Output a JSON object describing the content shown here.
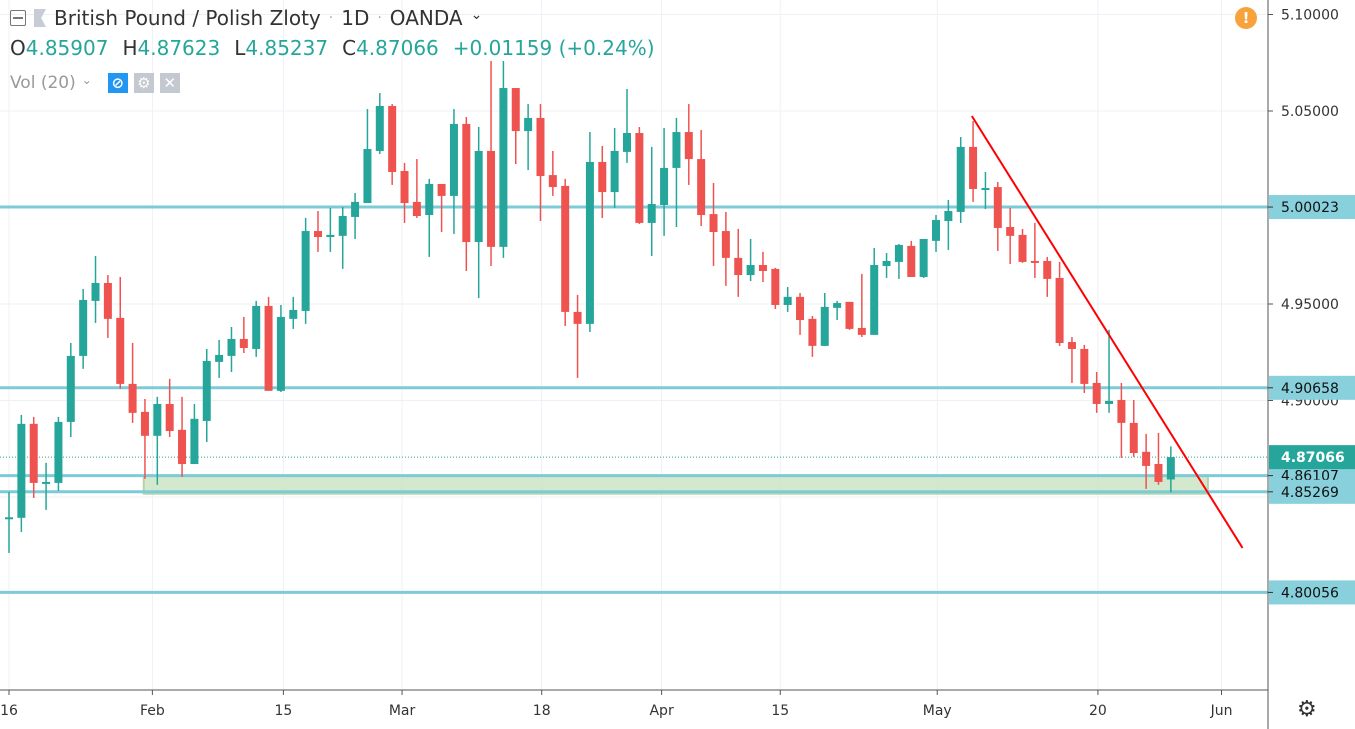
{
  "header": {
    "symbol": "British Pound / Polish Zloty",
    "separator": "·",
    "interval": "1D",
    "exchange": "OANDA",
    "chevron": "⌄"
  },
  "ohlc": {
    "o_label": "O",
    "o": "4.85907",
    "h_label": "H",
    "h": "4.87623",
    "l_label": "L",
    "l": "4.85237",
    "c_label": "C",
    "c": "4.87066",
    "change": "+0.01159 (+0.24%)"
  },
  "volume": {
    "label": "Vol (20)",
    "chevron": "⌄"
  },
  "icons": {
    "warning": "!",
    "settings": "⚙"
  },
  "colors": {
    "up": "#26a69a",
    "down": "#ef5350",
    "level": "#7ecbd8",
    "trend": "#ff0000",
    "zone": "#cfe6c7",
    "grid": "#edf1f5"
  },
  "chart_data": {
    "type": "candlestick",
    "title": "British Pound / Polish Zloty · 1D · OANDA",
    "ylim": [
      4.74,
      5.1
    ],
    "grid": true,
    "y_ticks": [
      "5.10000",
      "5.05000",
      "4.95000",
      "4.90000"
    ],
    "y_tick_values": [
      5.1,
      5.05,
      4.95,
      4.9
    ],
    "x_ticks": [
      {
        "label": "16",
        "index": 0
      },
      {
        "label": "Feb",
        "index": 11.6
      },
      {
        "label": "15",
        "index": 22.2
      },
      {
        "label": "Mar",
        "index": 31.8
      },
      {
        "label": "18",
        "index": 43.1
      },
      {
        "label": "Apr",
        "index": 52.8
      },
      {
        "label": "15",
        "index": 62.4
      },
      {
        "label": "May",
        "index": 75.1
      },
      {
        "label": "20",
        "index": 88.1
      },
      {
        "label": "Jun",
        "index": 98.1
      }
    ],
    "candles_ohlc": [
      [
        4.8392,
        4.8526,
        4.821,
        4.8395
      ],
      [
        4.8392,
        4.8925,
        4.8319,
        4.8879
      ],
      [
        4.8879,
        4.8915,
        4.8495,
        4.8573
      ],
      [
        4.8573,
        4.8677,
        4.8433,
        4.8578
      ],
      [
        4.8573,
        4.8915,
        4.8532,
        4.8889
      ],
      [
        4.8889,
        4.9298,
        4.8811,
        4.9231
      ],
      [
        4.9231,
        4.9578,
        4.9164,
        4.9521
      ],
      [
        4.9516,
        4.9749,
        4.9402,
        4.9609
      ],
      [
        4.9609,
        4.965,
        4.9324,
        4.9423
      ],
      [
        4.9428,
        4.964,
        4.906,
        4.9086
      ],
      [
        4.9086,
        4.9298,
        4.8884,
        4.8936
      ],
      [
        4.8941,
        4.9008,
        4.8594,
        4.8817
      ],
      [
        4.8817,
        4.9019,
        4.8563,
        4.8982
      ],
      [
        4.8982,
        4.9112,
        4.8811,
        4.8842
      ],
      [
        4.8848,
        4.9019,
        4.8604,
        4.8671
      ],
      [
        4.8671,
        4.8982,
        4.8671,
        4.8905
      ],
      [
        4.8894,
        4.9267,
        4.8785,
        4.9205
      ],
      [
        4.92,
        4.9314,
        4.9117,
        4.9236
      ],
      [
        4.9231,
        4.9381,
        4.9148,
        4.9319
      ],
      [
        4.9319,
        4.9433,
        4.9246,
        4.9272
      ],
      [
        4.9267,
        4.9516,
        4.9226,
        4.949
      ],
      [
        4.949,
        4.9537,
        4.905,
        4.905
      ],
      [
        4.905,
        4.9495,
        4.9044,
        4.9433
      ],
      [
        4.9423,
        4.9537,
        4.9371,
        4.9469
      ],
      [
        4.9464,
        4.9946,
        4.9397,
        4.9878
      ],
      [
        4.9878,
        4.9982,
        4.977,
        4.9847
      ],
      [
        4.9847,
        4.9998,
        4.977,
        4.9858
      ],
      [
        4.9853,
        5.0003,
        4.9682,
        4.9956
      ],
      [
        4.9951,
        5.0075,
        4.9837,
        5.0029
      ],
      [
        5.0023,
        5.051,
        5.0023,
        5.0303
      ],
      [
        5.0293,
        5.0593,
        5.0277,
        5.0526
      ],
      [
        5.0526,
        5.0536,
        5.0117,
        5.0184
      ],
      [
        5.0189,
        5.0231,
        4.992,
        5.0023
      ],
      [
        5.0029,
        5.0251,
        4.9946,
        4.9956
      ],
      [
        4.9961,
        5.0148,
        4.9744,
        5.0122
      ],
      [
        5.0122,
        5.0122,
        4.9873,
        5.006
      ],
      [
        5.006,
        5.051,
        4.9863,
        5.0433
      ],
      [
        5.0433,
        5.0469,
        4.9671,
        4.9821
      ],
      [
        4.9821,
        5.0417,
        4.9531,
        5.0293
      ],
      [
        5.0293,
        5.0759,
        4.9697,
        4.9796
      ],
      [
        4.9796,
        5.0759,
        4.9739,
        5.0619
      ],
      [
        5.0619,
        5.0619,
        5.0225,
        5.0396
      ],
      [
        5.0396,
        5.0536,
        5.0194,
        5.0464
      ],
      [
        5.0464,
        5.0536,
        4.993,
        5.0163
      ],
      [
        5.0168,
        5.0293,
        5.006,
        5.0106
      ],
      [
        5.0112,
        5.0148,
        4.9386,
        4.9459
      ],
      [
        4.9459,
        4.9547,
        4.9117,
        4.9397
      ],
      [
        4.9397,
        5.0391,
        4.9355,
        5.0236
      ],
      [
        5.0236,
        5.0319,
        4.9946,
        5.008
      ],
      [
        5.008,
        5.0412,
        4.9998,
        5.0293
      ],
      [
        5.0288,
        5.0614,
        5.0231,
        5.0386
      ],
      [
        5.0386,
        5.0417,
        4.9915,
        4.992
      ],
      [
        4.992,
        5.0314,
        4.9749,
        5.0018
      ],
      [
        5.0013,
        5.0412,
        4.9853,
        5.0205
      ],
      [
        5.0205,
        5.0464,
        4.9899,
        5.0391
      ],
      [
        5.0391,
        5.0536,
        5.0117,
        5.0251
      ],
      [
        5.0251,
        5.0402,
        4.9904,
        4.9961
      ],
      [
        4.9966,
        5.0127,
        4.9697,
        4.9873
      ],
      [
        4.9878,
        4.9977,
        4.9594,
        4.9739
      ],
      [
        4.9739,
        4.9889,
        4.9537,
        4.965
      ],
      [
        4.965,
        4.9837,
        4.9619,
        4.9702
      ],
      [
        4.9702,
        4.977,
        4.9614,
        4.9671
      ],
      [
        4.9682,
        4.9687,
        4.9474,
        4.9495
      ],
      [
        4.9495,
        4.9588,
        4.9459,
        4.9537
      ],
      [
        4.9537,
        4.9557,
        4.934,
        4.9417
      ],
      [
        4.9423,
        4.9438,
        4.9226,
        4.9283
      ],
      [
        4.9283,
        4.9557,
        4.9283,
        4.9485
      ],
      [
        4.948,
        4.9516,
        4.9417,
        4.9505
      ],
      [
        4.9511,
        4.9511,
        4.9366,
        4.9371
      ],
      [
        4.9376,
        4.9656,
        4.9329,
        4.934
      ],
      [
        4.934,
        4.979,
        4.934,
        4.9702
      ],
      [
        4.9697,
        4.9764,
        4.9635,
        4.9723
      ],
      [
        4.9718,
        4.9811,
        4.963,
        4.9806
      ],
      [
        4.9801,
        4.9827,
        4.964,
        4.964
      ],
      [
        4.964,
        4.9837,
        4.9635,
        4.9837
      ],
      [
        4.9827,
        4.9961,
        4.977,
        4.9935
      ],
      [
        4.993,
        5.0039,
        4.978,
        4.9982
      ],
      [
        4.9977,
        5.0365,
        4.992,
        5.0314
      ],
      [
        5.0314,
        5.0448,
        5.0029,
        5.0096
      ],
      [
        5.0096,
        5.0184,
        4.9992,
        5.0101
      ],
      [
        5.0106,
        5.0132,
        4.9775,
        4.9894
      ],
      [
        4.9899,
        4.9998,
        4.9707,
        4.9853
      ],
      [
        4.9858,
        4.9889,
        4.9713,
        4.9718
      ],
      [
        4.9723,
        4.992,
        4.9635,
        4.9718
      ],
      [
        4.9723,
        4.9744,
        4.9537,
        4.963
      ],
      [
        4.9635,
        4.9718,
        4.9283,
        4.9298
      ],
      [
        4.9303,
        4.9329,
        4.9091,
        4.9267
      ],
      [
        4.9267,
        4.9288,
        4.9039,
        4.9086
      ],
      [
        4.9091,
        4.9148,
        4.8936,
        4.8982
      ],
      [
        4.8982,
        4.9366,
        4.8936,
        4.8998
      ],
      [
        4.9003,
        4.9091,
        4.8703,
        4.8884
      ],
      [
        4.8884,
        4.9003,
        4.8708,
        4.8728
      ],
      [
        4.8734,
        4.8827,
        4.8542,
        4.8661
      ],
      [
        4.8671,
        4.8832,
        4.8563,
        4.8578
      ],
      [
        4.85907,
        4.87623,
        4.85237,
        4.87066
      ]
    ],
    "horizontal_levels": [
      {
        "label": "5.00023",
        "value": 5.00023
      },
      {
        "label": "4.90658",
        "value": 4.90658
      },
      {
        "label": "4.86107",
        "value": 4.86107
      },
      {
        "label": "4.85269",
        "value": 4.85269
      },
      {
        "label": "4.80056",
        "value": 4.80056
      }
    ],
    "current_price": {
      "label": "4.87066",
      "value": 4.87066
    },
    "support_zone": {
      "from_index": 10.9,
      "to_index": 97,
      "low": 4.8517,
      "high": 4.861
    },
    "trendline": {
      "start": {
        "index": 77.9,
        "value": 5.0474
      },
      "end": {
        "index": 99.8,
        "value": 4.8236
      }
    }
  }
}
